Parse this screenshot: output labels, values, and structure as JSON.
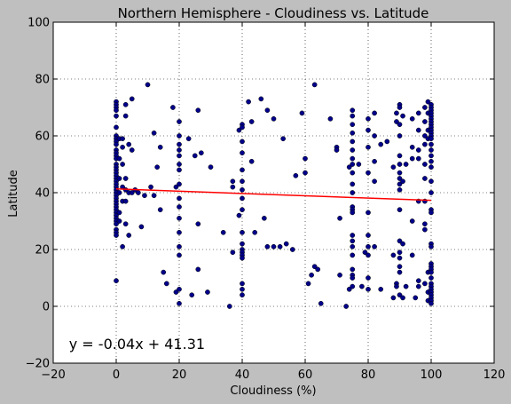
{
  "chart_data": {
    "type": "scatter",
    "title": "Northern Hemisphere - Cloudiness vs. Latitude",
    "xlabel": "Cloudiness (%)",
    "ylabel": "Latitude",
    "xlim": [
      -20,
      120
    ],
    "ylim": [
      -20,
      100
    ],
    "xticks": [
      -20,
      0,
      20,
      40,
      60,
      80,
      100,
      120
    ],
    "yticks": [
      -20,
      0,
      20,
      40,
      60,
      80,
      100
    ],
    "grid": true,
    "point_color": "#00008b",
    "line_color": "#ff0000",
    "regression": {
      "slope": -0.04,
      "intercept": 41.31,
      "equation": "y = -0.04x + 41.31",
      "annotation_at": [
        -15,
        -15
      ]
    },
    "points": [
      [
        0,
        72
      ],
      [
        0,
        71
      ],
      [
        0,
        70
      ],
      [
        0,
        69
      ],
      [
        0,
        67
      ],
      [
        0,
        63
      ],
      [
        0,
        60
      ],
      [
        0,
        59
      ],
      [
        0,
        58
      ],
      [
        0,
        57
      ],
      [
        0,
        55
      ],
      [
        0,
        54
      ],
      [
        0,
        53
      ],
      [
        0,
        52
      ],
      [
        0,
        50
      ],
      [
        0,
        49
      ],
      [
        0,
        48
      ],
      [
        0,
        47
      ],
      [
        0,
        46
      ],
      [
        0,
        45
      ],
      [
        0,
        44
      ],
      [
        0,
        43
      ],
      [
        0,
        42
      ],
      [
        0,
        41
      ],
      [
        0,
        40
      ],
      [
        0,
        39
      ],
      [
        0,
        38
      ],
      [
        0,
        37
      ],
      [
        0,
        36
      ],
      [
        0,
        35
      ],
      [
        0,
        34
      ],
      [
        0,
        33
      ],
      [
        0,
        32
      ],
      [
        0,
        31
      ],
      [
        0,
        30
      ],
      [
        0,
        29
      ],
      [
        0,
        27
      ],
      [
        0,
        26
      ],
      [
        0,
        25
      ],
      [
        0,
        9
      ],
      [
        1,
        59
      ],
      [
        1,
        52
      ],
      [
        1,
        45
      ],
      [
        1,
        40
      ],
      [
        1,
        33
      ],
      [
        1,
        30
      ],
      [
        2,
        59
      ],
      [
        2,
        56
      ],
      [
        2,
        50
      ],
      [
        2,
        42
      ],
      [
        2,
        37
      ],
      [
        2,
        21
      ],
      [
        3,
        71
      ],
      [
        3,
        67
      ],
      [
        3,
        45
      ],
      [
        3,
        41
      ],
      [
        3,
        37
      ],
      [
        3,
        29
      ],
      [
        4,
        57
      ],
      [
        4,
        40
      ],
      [
        4,
        25
      ],
      [
        5,
        73
      ],
      [
        5,
        55
      ],
      [
        5,
        40
      ],
      [
        6,
        41
      ],
      [
        7,
        40
      ],
      [
        8,
        28
      ],
      [
        9,
        39
      ],
      [
        10,
        78
      ],
      [
        11,
        42
      ],
      [
        12,
        61
      ],
      [
        12,
        39
      ],
      [
        13,
        49
      ],
      [
        14,
        56
      ],
      [
        14,
        34
      ],
      [
        15,
        12
      ],
      [
        16,
        8
      ],
      [
        18,
        70
      ],
      [
        19,
        42
      ],
      [
        19,
        5
      ],
      [
        20,
        65
      ],
      [
        20,
        60
      ],
      [
        20,
        57
      ],
      [
        20,
        55
      ],
      [
        20,
        53
      ],
      [
        20,
        50
      ],
      [
        20,
        48
      ],
      [
        20,
        43
      ],
      [
        20,
        38
      ],
      [
        20,
        35
      ],
      [
        20,
        31
      ],
      [
        20,
        26
      ],
      [
        20,
        21
      ],
      [
        20,
        18
      ],
      [
        20,
        6
      ],
      [
        20,
        1
      ],
      [
        23,
        59
      ],
      [
        24,
        4
      ],
      [
        25,
        53
      ],
      [
        26,
        69
      ],
      [
        26,
        13
      ],
      [
        26,
        29
      ],
      [
        27,
        54
      ],
      [
        29,
        5
      ],
      [
        30,
        49
      ],
      [
        34,
        26
      ],
      [
        36,
        0
      ],
      [
        37,
        44
      ],
      [
        37,
        42
      ],
      [
        37,
        19
      ],
      [
        39,
        62
      ],
      [
        39,
        32
      ],
      [
        40,
        64
      ],
      [
        40,
        63
      ],
      [
        40,
        58
      ],
      [
        40,
        54
      ],
      [
        40,
        48
      ],
      [
        40,
        44
      ],
      [
        40,
        41
      ],
      [
        40,
        38
      ],
      [
        40,
        34
      ],
      [
        40,
        26
      ],
      [
        40,
        22
      ],
      [
        40,
        20
      ],
      [
        40,
        19
      ],
      [
        40,
        18
      ],
      [
        40,
        17
      ],
      [
        40,
        8
      ],
      [
        40,
        6
      ],
      [
        40,
        4
      ],
      [
        42,
        72
      ],
      [
        43,
        65
      ],
      [
        43,
        51
      ],
      [
        44,
        26
      ],
      [
        46,
        73
      ],
      [
        47,
        31
      ],
      [
        48,
        69
      ],
      [
        48,
        21
      ],
      [
        50,
        66
      ],
      [
        50,
        21
      ],
      [
        52,
        21
      ],
      [
        53,
        59
      ],
      [
        54,
        22
      ],
      [
        56,
        20
      ],
      [
        57,
        46
      ],
      [
        59,
        68
      ],
      [
        60,
        47
      ],
      [
        60,
        52
      ],
      [
        61,
        8
      ],
      [
        62,
        11
      ],
      [
        63,
        14
      ],
      [
        63,
        78
      ],
      [
        64,
        13
      ],
      [
        65,
        1
      ],
      [
        68,
        66
      ],
      [
        70,
        56
      ],
      [
        70,
        55
      ],
      [
        71,
        31
      ],
      [
        71,
        11
      ],
      [
        73,
        0
      ],
      [
        74,
        49
      ],
      [
        74,
        6
      ],
      [
        75,
        69
      ],
      [
        75,
        67
      ],
      [
        75,
        64
      ],
      [
        75,
        61
      ],
      [
        75,
        58
      ],
      [
        75,
        55
      ],
      [
        75,
        52
      ],
      [
        75,
        50
      ],
      [
        75,
        47
      ],
      [
        75,
        43
      ],
      [
        75,
        40
      ],
      [
        75,
        35
      ],
      [
        75,
        34
      ],
      [
        75,
        33
      ],
      [
        75,
        25
      ],
      [
        75,
        23
      ],
      [
        75,
        21
      ],
      [
        75,
        18
      ],
      [
        75,
        13
      ],
      [
        75,
        11
      ],
      [
        75,
        10
      ],
      [
        75,
        7
      ],
      [
        77,
        50
      ],
      [
        78,
        7
      ],
      [
        79,
        19
      ],
      [
        80,
        66
      ],
      [
        80,
        62
      ],
      [
        80,
        56
      ],
      [
        80,
        47
      ],
      [
        80,
        33
      ],
      [
        80,
        25
      ],
      [
        80,
        21
      ],
      [
        80,
        18
      ],
      [
        80,
        10
      ],
      [
        80,
        6
      ],
      [
        82,
        68
      ],
      [
        82,
        60
      ],
      [
        82,
        51
      ],
      [
        82,
        44
      ],
      [
        82,
        21
      ],
      [
        84,
        57
      ],
      [
        84,
        6
      ],
      [
        86,
        58
      ],
      [
        88,
        49
      ],
      [
        88,
        18
      ],
      [
        88,
        3
      ],
      [
        89,
        68
      ],
      [
        89,
        65
      ],
      [
        89,
        8
      ],
      [
        89,
        7
      ],
      [
        90,
        71
      ],
      [
        90,
        70
      ],
      [
        90,
        64
      ],
      [
        90,
        60
      ],
      [
        90,
        53
      ],
      [
        90,
        50
      ],
      [
        90,
        47
      ],
      [
        90,
        45
      ],
      [
        90,
        43
      ],
      [
        90,
        41
      ],
      [
        90,
        34
      ],
      [
        90,
        23
      ],
      [
        90,
        19
      ],
      [
        90,
        17
      ],
      [
        90,
        14
      ],
      [
        90,
        12
      ],
      [
        90,
        4
      ],
      [
        91,
        67
      ],
      [
        91,
        44
      ],
      [
        91,
        22
      ],
      [
        91,
        3
      ],
      [
        92,
        50
      ],
      [
        92,
        7
      ],
      [
        94,
        66
      ],
      [
        94,
        56
      ],
      [
        94,
        52
      ],
      [
        94,
        30
      ],
      [
        94,
        18
      ],
      [
        95,
        3
      ],
      [
        96,
        68
      ],
      [
        96,
        62
      ],
      [
        96,
        55
      ],
      [
        96,
        52
      ],
      [
        96,
        37
      ],
      [
        96,
        7
      ],
      [
        96,
        9
      ],
      [
        98,
        70
      ],
      [
        98,
        65
      ],
      [
        98,
        60
      ],
      [
        98,
        57
      ],
      [
        98,
        50
      ],
      [
        98,
        45
      ],
      [
        98,
        37
      ],
      [
        98,
        29
      ],
      [
        98,
        27
      ],
      [
        98,
        8
      ],
      [
        99,
        72
      ],
      [
        99,
        68
      ],
      [
        99,
        62
      ],
      [
        99,
        59
      ],
      [
        99,
        12
      ],
      [
        99,
        5
      ],
      [
        99,
        2
      ],
      [
        100,
        71
      ],
      [
        100,
        70
      ],
      [
        100,
        69
      ],
      [
        100,
        68
      ],
      [
        100,
        67
      ],
      [
        100,
        66
      ],
      [
        100,
        65
      ],
      [
        100,
        64
      ],
      [
        100,
        63
      ],
      [
        100,
        62
      ],
      [
        100,
        61
      ],
      [
        100,
        60
      ],
      [
        100,
        59
      ],
      [
        100,
        57
      ],
      [
        100,
        55
      ],
      [
        100,
        53
      ],
      [
        100,
        51
      ],
      [
        100,
        49
      ],
      [
        100,
        44
      ],
      [
        100,
        40
      ],
      [
        100,
        34
      ],
      [
        100,
        33
      ],
      [
        100,
        22
      ],
      [
        100,
        21
      ],
      [
        100,
        15
      ],
      [
        100,
        14
      ],
      [
        100,
        13
      ],
      [
        100,
        12
      ],
      [
        100,
        10
      ],
      [
        100,
        8
      ],
      [
        100,
        7
      ],
      [
        100,
        6
      ],
      [
        100,
        5
      ],
      [
        100,
        4
      ],
      [
        100,
        3
      ],
      [
        100,
        2
      ],
      [
        100,
        1
      ]
    ]
  }
}
